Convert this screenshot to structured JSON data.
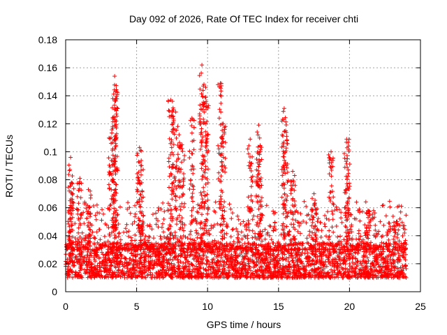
{
  "chart_data": {
    "type": "scatter",
    "title": "Day 092 of 2026, Rate Of TEC Index for receiver chti",
    "xlabel": "GPS time / hours",
    "ylabel": "ROTI / TECUs",
    "xlim": [
      0,
      25
    ],
    "ylim": [
      0,
      0.18
    ],
    "xticks": [
      0,
      5,
      10,
      15,
      20,
      25
    ],
    "xtick_labels": [
      "0",
      "5",
      "10",
      "15",
      "20",
      "25"
    ],
    "yticks": [
      0,
      0.02,
      0.04,
      0.06,
      0.08,
      0.1,
      0.12,
      0.14,
      0.16,
      0.18
    ],
    "ytick_labels": [
      "0",
      "0.02",
      "0.04",
      "0.06",
      "0.08",
      "0.1",
      "0.12",
      "0.14",
      "0.16",
      "0.18"
    ],
    "grid": true,
    "marker": "+",
    "series_color": "#ff0000",
    "data_range_x": [
      0,
      24
    ],
    "dense_band": [
      0.01,
      0.035
    ],
    "peaks": [
      {
        "x": 0.35,
        "y": 0.096
      },
      {
        "x": 0.4,
        "y": 0.078
      },
      {
        "x": 1.0,
        "y": 0.081
      },
      {
        "x": 1.6,
        "y": 0.073
      },
      {
        "x": 3.2,
        "y": 0.11
      },
      {
        "x": 3.4,
        "y": 0.125
      },
      {
        "x": 3.45,
        "y": 0.154
      },
      {
        "x": 3.5,
        "y": 0.143
      },
      {
        "x": 5.2,
        "y": 0.103
      },
      {
        "x": 5.3,
        "y": 0.09
      },
      {
        "x": 7.4,
        "y": 0.137
      },
      {
        "x": 7.6,
        "y": 0.13
      },
      {
        "x": 7.9,
        "y": 0.118
      },
      {
        "x": 8.2,
        "y": 0.105
      },
      {
        "x": 8.9,
        "y": 0.124
      },
      {
        "x": 9.6,
        "y": 0.162
      },
      {
        "x": 9.7,
        "y": 0.147
      },
      {
        "x": 9.9,
        "y": 0.136
      },
      {
        "x": 10.9,
        "y": 0.149
      },
      {
        "x": 11.1,
        "y": 0.12
      },
      {
        "x": 13.0,
        "y": 0.109
      },
      {
        "x": 13.6,
        "y": 0.119
      },
      {
        "x": 13.7,
        "y": 0.104
      },
      {
        "x": 15.4,
        "y": 0.131
      },
      {
        "x": 15.5,
        "y": 0.115
      },
      {
        "x": 16.0,
        "y": 0.086
      },
      {
        "x": 17.5,
        "y": 0.07
      },
      {
        "x": 18.7,
        "y": 0.1
      },
      {
        "x": 19.8,
        "y": 0.109
      },
      {
        "x": 19.85,
        "y": 0.095
      },
      {
        "x": 21.3,
        "y": 0.058
      },
      {
        "x": 23.3,
        "y": 0.05
      }
    ]
  }
}
